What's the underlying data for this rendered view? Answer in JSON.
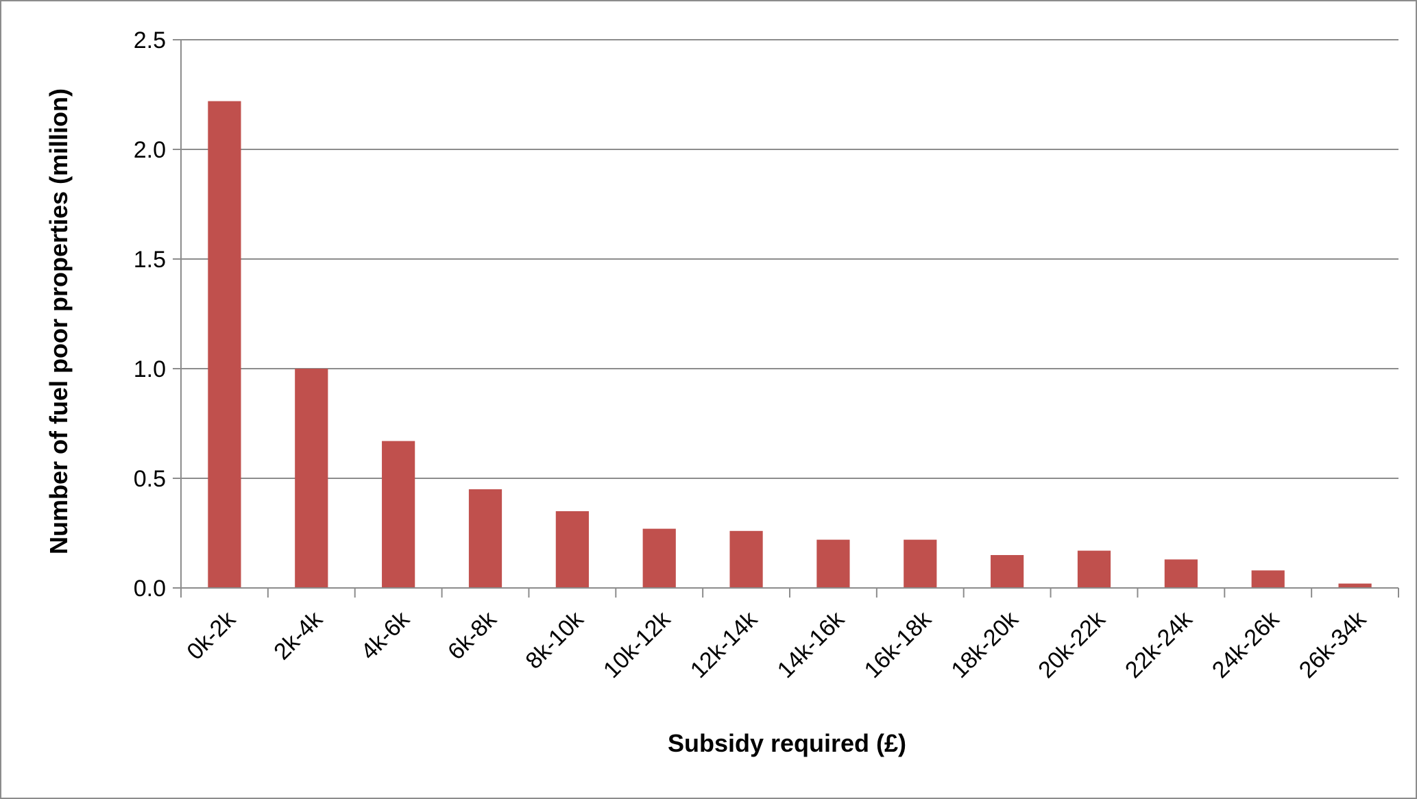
{
  "chart_data": {
    "type": "bar",
    "title": "",
    "xlabel": "Subsidy required (£)",
    "ylabel": "Number of fuel poor properties (million)",
    "categories": [
      "0k-2k",
      "2k-4k",
      "4k-6k",
      "6k-8k",
      "8k-10k",
      "10k-12k",
      "12k-14k",
      "14k-16k",
      "16k-18k",
      "18k-20k",
      "20k-22k",
      "22k-24k",
      "24k-26k",
      "26k-34k"
    ],
    "values": [
      2.22,
      1.0,
      0.67,
      0.45,
      0.35,
      0.27,
      0.26,
      0.22,
      0.22,
      0.15,
      0.17,
      0.13,
      0.08,
      0.02
    ],
    "ylim": [
      0,
      2.5
    ],
    "yticks": [
      "0.0",
      "0.5",
      "1.0",
      "1.5",
      "2.0",
      "2.5"
    ],
    "grid": true,
    "legend": "none",
    "bar_color": "#c0504d",
    "grid_color": "#8c8c8c"
  }
}
